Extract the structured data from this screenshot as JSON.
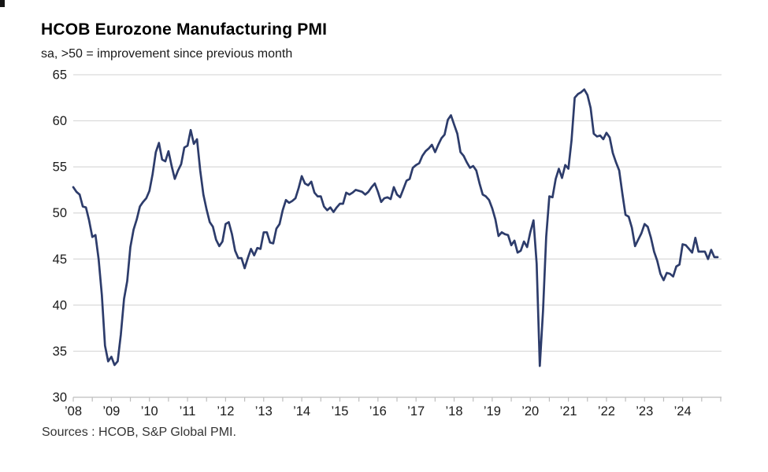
{
  "header": {
    "title": "HCOB Eurozone Manufacturing PMI",
    "subtitle": "sa, >50 = improvement since previous month"
  },
  "footer": {
    "source": "Sources : HCOB, S&P Global PMI."
  },
  "chart_data": {
    "type": "line",
    "title": "HCOB Eurozone Manufacturing PMI",
    "subtitle": "sa, >50 = improvement since previous month",
    "source": "Sources : HCOB, S&P Global PMI.",
    "xlabel": "",
    "ylabel": "",
    "ylim": [
      30,
      65
    ],
    "y_ticks": [
      30,
      35,
      40,
      45,
      50,
      55,
      60,
      65
    ],
    "x_tick_labels": [
      "’08",
      "’09",
      "’10",
      "’11",
      "’12",
      "’13",
      "’14",
      "’15",
      "’16",
      "’17",
      "’18",
      "’19",
      "’20",
      "’21",
      "’22",
      "’23",
      "’24"
    ],
    "x_minor_tick_interval_months": 6,
    "grid": "horizontal",
    "legend": "none",
    "line_color": "#2d3c6b",
    "grid_color": "#d9d9d9",
    "axis_color": "#bdbdbd",
    "label_color": "#1a1a1a",
    "series_name": "Eurozone Manufacturing PMI (monthly, Jan 2008 - Dec 2024)",
    "years": [
      "2008",
      "2009",
      "2010",
      "2011",
      "2012",
      "2013",
      "2014",
      "2015",
      "2016",
      "2017",
      "2018",
      "2019",
      "2020",
      "2021",
      "2022",
      "2023",
      "2024"
    ],
    "values_by_year": {
      "2008": [
        52.8,
        52.3,
        52.0,
        50.7,
        50.6,
        49.2,
        47.4,
        47.6,
        45.0,
        41.1,
        35.6,
        33.9
      ],
      "2009": [
        34.4,
        33.5,
        33.9,
        36.8,
        40.7,
        42.6,
        46.3,
        48.2,
        49.3,
        50.7,
        51.2,
        51.6
      ],
      "2010": [
        52.4,
        54.2,
        56.6,
        57.6,
        55.8,
        55.6,
        56.7,
        55.1,
        53.7,
        54.6,
        55.3,
        57.1
      ],
      "2011": [
        57.3,
        59.0,
        57.5,
        58.0,
        54.6,
        52.0,
        50.4,
        49.0,
        48.5,
        47.1,
        46.4,
        46.9
      ],
      "2012": [
        48.8,
        49.0,
        47.7,
        45.9,
        45.1,
        45.1,
        44.0,
        45.1,
        46.1,
        45.4,
        46.2,
        46.1
      ],
      "2013": [
        47.9,
        47.9,
        46.8,
        46.7,
        48.3,
        48.8,
        50.3,
        51.4,
        51.1,
        51.3,
        51.6,
        52.7
      ],
      "2014": [
        54.0,
        53.2,
        53.0,
        53.4,
        52.2,
        51.8,
        51.8,
        50.7,
        50.3,
        50.6,
        50.1,
        50.6
      ],
      "2015": [
        51.0,
        51.0,
        52.2,
        52.0,
        52.2,
        52.5,
        52.4,
        52.3,
        52.0,
        52.3,
        52.8,
        53.2
      ],
      "2016": [
        52.3,
        51.2,
        51.6,
        51.7,
        51.5,
        52.8,
        52.0,
        51.7,
        52.6,
        53.5,
        53.7,
        54.9
      ],
      "2017": [
        55.2,
        55.4,
        56.2,
        56.7,
        57.0,
        57.4,
        56.6,
        57.4,
        58.1,
        58.5,
        60.1,
        60.6
      ],
      "2018": [
        59.6,
        58.6,
        56.6,
        56.2,
        55.5,
        54.9,
        55.1,
        54.6,
        53.2,
        52.0,
        51.8,
        51.4
      ],
      "2019": [
        50.5,
        49.3,
        47.5,
        47.9,
        47.7,
        47.6,
        46.5,
        47.0,
        45.7,
        45.9,
        46.9,
        46.3
      ],
      "2020": [
        47.9,
        49.2,
        44.5,
        33.4,
        39.4,
        47.4,
        51.8,
        51.7,
        53.7,
        54.8,
        53.8,
        55.2
      ],
      "2021": [
        54.8,
        57.9,
        62.5,
        62.9,
        63.1,
        63.4,
        62.8,
        61.4,
        58.6,
        58.3,
        58.4,
        58.0
      ],
      "2022": [
        58.7,
        58.2,
        56.5,
        55.5,
        54.6,
        52.1,
        49.8,
        49.6,
        48.4,
        46.4,
        47.1,
        47.8
      ],
      "2023": [
        48.8,
        48.5,
        47.3,
        45.8,
        44.8,
        43.4,
        42.7,
        43.5,
        43.4,
        43.1,
        44.2,
        44.4
      ],
      "2024": [
        46.6,
        46.5,
        46.1,
        45.7,
        47.3,
        45.8,
        45.8,
        45.8,
        45.0,
        46.0,
        45.2,
        45.2
      ]
    }
  }
}
